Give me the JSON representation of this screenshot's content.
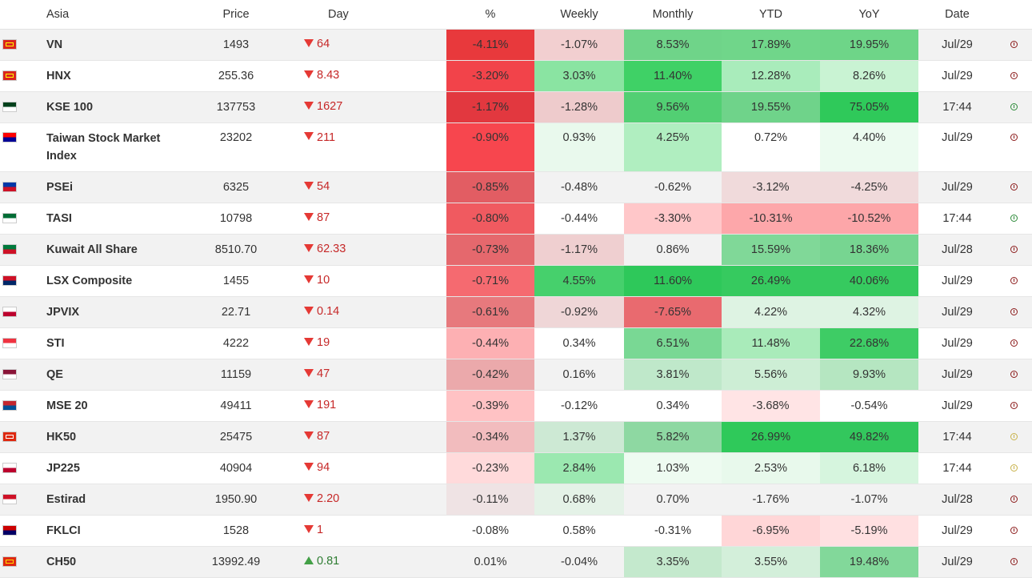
{
  "header": {
    "region": "Asia",
    "price": "Price",
    "day": "Day",
    "pct": "%",
    "weekly": "Weekly",
    "monthly": "Monthly",
    "ytd": "YTD",
    "yoy": "YoY",
    "date": "Date"
  },
  "rows": [
    {
      "name": "VN",
      "price": "1493",
      "day": "64",
      "dir": "down",
      "pct": "-4.11%",
      "weekly": "-1.07%",
      "monthly": "8.53%",
      "ytd": "17.89%",
      "yoy": "19.95%",
      "date": "Jul/29",
      "clock": "red-clock-icon",
      "flag_colors": [
        "#da251d",
        "#ffff00"
      ],
      "colors": {
        "pct": "#e8393c",
        "weekly": "#f2cfd0",
        "monthly": "#6fd489",
        "ytd": "#70d68a",
        "yoy": "#6ed588"
      }
    },
    {
      "name": "HNX",
      "price": "255.36",
      "day": "8.43",
      "dir": "down",
      "pct": "-3.20%",
      "weekly": "3.03%",
      "monthly": "11.40%",
      "ytd": "12.28%",
      "yoy": "8.26%",
      "date": "Jul/29",
      "clock": "red-clock-icon",
      "flag_colors": [
        "#da251d",
        "#ffff00"
      ],
      "colors": {
        "pct": "#f2434a",
        "weekly": "#8ae4a2",
        "monthly": "#3fd166",
        "ytd": "#a9ecbb",
        "yoy": "#c9f3d3"
      }
    },
    {
      "name": "KSE 100",
      "price": "137753",
      "day": "1627",
      "dir": "down",
      "pct": "-1.17%",
      "weekly": "-1.28%",
      "monthly": "9.56%",
      "ytd": "19.55%",
      "yoy": "75.05%",
      "date": "17:44",
      "clock": "green-clock-icon",
      "flag_colors": [
        "#01411c",
        "#ffffff"
      ],
      "colors": {
        "pct": "#e2383f",
        "weekly": "#eecbcc",
        "monthly": "#52cf73",
        "ytd": "#6fd38a",
        "yoy": "#2fc95a"
      }
    },
    {
      "name": "Taiwan Stock Market Index",
      "price": "23202",
      "day": "211",
      "dir": "down",
      "pct": "-0.90%",
      "weekly": "0.93%",
      "monthly": "4.25%",
      "ytd": "0.72%",
      "yoy": "4.40%",
      "date": "Jul/29",
      "clock": "red-clock-icon",
      "tall": true,
      "flag_colors": [
        "#fe0000",
        "#000095"
      ],
      "colors": {
        "pct": "#f7464e",
        "weekly": "#e9f9ed",
        "monthly": "#b0eec0",
        "ytd": "#ffffff",
        "yoy": "#ecfbf0"
      }
    },
    {
      "name": "PSEi",
      "price": "6325",
      "day": "54",
      "dir": "down",
      "pct": "-0.85%",
      "weekly": "-0.48%",
      "monthly": "-0.62%",
      "ytd": "-3.12%",
      "yoy": "-4.25%",
      "date": "Jul/29",
      "clock": "red-clock-icon",
      "flag_colors": [
        "#0038a8",
        "#ce1126"
      ],
      "colors": {
        "pct": "#e25d63",
        "weekly": "#f2f2f2",
        "monthly": "#f2f2f2",
        "ytd": "#f0dadb",
        "yoy": "#f0dadb"
      }
    },
    {
      "name": "TASI",
      "price": "10798",
      "day": "87",
      "dir": "down",
      "pct": "-0.80%",
      "weekly": "-0.44%",
      "monthly": "-3.30%",
      "ytd": "-10.31%",
      "yoy": "-10.52%",
      "date": "17:44",
      "clock": "green-clock-icon",
      "flag_colors": [
        "#006c35",
        "#ffffff"
      ],
      "colors": {
        "pct": "#f05a60",
        "weekly": "#ffffff",
        "monthly": "#ffc7c9",
        "ytd": "#fda7aa",
        "yoy": "#fda6a9"
      }
    },
    {
      "name": "Kuwait All Share",
      "price": "8510.70",
      "day": "62.33",
      "dir": "down",
      "pct": "-0.73%",
      "weekly": "-1.17%",
      "monthly": "0.86%",
      "ytd": "15.59%",
      "yoy": "18.36%",
      "date": "Jul/28",
      "clock": "red-clock-icon",
      "flag_colors": [
        "#007a3d",
        "#ce1126"
      ],
      "colors": {
        "pct": "#e5686d",
        "weekly": "#efcfd0",
        "monthly": "#f2f2f2",
        "ytd": "#80d898",
        "yoy": "#77d591"
      }
    },
    {
      "name": "LSX Composite",
      "price": "1455",
      "day": "10",
      "dir": "down",
      "pct": "-0.71%",
      "weekly": "4.55%",
      "monthly": "11.60%",
      "ytd": "26.49%",
      "yoy": "40.06%",
      "date": "Jul/29",
      "clock": "red-clock-icon",
      "flag_colors": [
        "#ce1126",
        "#002868"
      ],
      "colors": {
        "pct": "#f56a70",
        "weekly": "#46d06c",
        "monthly": "#2ec85a",
        "ytd": "#36ca5f",
        "yoy": "#36ca5f"
      }
    },
    {
      "name": "JPVIX",
      "price": "22.71",
      "day": "0.14",
      "dir": "down",
      "pct": "-0.61%",
      "weekly": "-0.92%",
      "monthly": "-7.65%",
      "ytd": "4.22%",
      "yoy": "4.32%",
      "date": "Jul/29",
      "clock": "red-clock-icon",
      "flag_colors": [
        "#ffffff",
        "#bc002d"
      ],
      "colors": {
        "pct": "#e7797d",
        "weekly": "#efd6d7",
        "monthly": "#e96a6f",
        "ytd": "#def3e3",
        "yoy": "#def3e3"
      }
    },
    {
      "name": "STI",
      "price": "4222",
      "day": "19",
      "dir": "down",
      "pct": "-0.44%",
      "weekly": "0.34%",
      "monthly": "6.51%",
      "ytd": "11.48%",
      "yoy": "22.68%",
      "date": "Jul/29",
      "clock": "red-clock-icon",
      "flag_colors": [
        "#ef3340",
        "#ffffff"
      ],
      "colors": {
        "pct": "#fdb0b3",
        "weekly": "#ffffff",
        "monthly": "#79d894",
        "ytd": "#a9ebba",
        "yoy": "#3ecc65"
      }
    },
    {
      "name": "QE",
      "price": "11159",
      "day": "47",
      "dir": "down",
      "pct": "-0.42%",
      "weekly": "0.16%",
      "monthly": "3.81%",
      "ytd": "5.56%",
      "yoy": "9.93%",
      "date": "Jul/29",
      "clock": "red-clock-icon",
      "flag_colors": [
        "#8a1538",
        "#ffffff"
      ],
      "colors": {
        "pct": "#eba9ab",
        "weekly": "#f2f2f2",
        "monthly": "#bfe8ca",
        "ytd": "#cdeed5",
        "yoy": "#b5e6c1"
      }
    },
    {
      "name": "MSE 20",
      "price": "49411",
      "day": "191",
      "dir": "down",
      "pct": "-0.39%",
      "weekly": "-0.12%",
      "monthly": "0.34%",
      "ytd": "-3.68%",
      "yoy": "-0.54%",
      "date": "Jul/29",
      "clock": "red-clock-icon",
      "flag_colors": [
        "#c4272f",
        "#015197"
      ],
      "colors": {
        "pct": "#ffc2c4",
        "weekly": "#ffffff",
        "monthly": "#ffffff",
        "ytd": "#ffe4e5",
        "yoy": "#ffffff"
      }
    },
    {
      "name": "HK50",
      "price": "25475",
      "day": "87",
      "dir": "down",
      "pct": "-0.34%",
      "weekly": "1.37%",
      "monthly": "5.82%",
      "ytd": "26.99%",
      "yoy": "49.82%",
      "date": "17:44",
      "clock": "yellow-clock-icon",
      "flag_colors": [
        "#de2910",
        "#ffffff"
      ],
      "colors": {
        "pct": "#f2bcbe",
        "weekly": "#cde9d4",
        "monthly": "#8ed8a2",
        "ytd": "#2fc95a",
        "yoy": "#33c75d"
      }
    },
    {
      "name": "JP225",
      "price": "40904",
      "day": "94",
      "dir": "down",
      "pct": "-0.23%",
      "weekly": "2.84%",
      "monthly": "1.03%",
      "ytd": "2.53%",
      "yoy": "6.18%",
      "date": "17:44",
      "clock": "yellow-clock-icon",
      "flag_colors": [
        "#ffffff",
        "#bc002d"
      ],
      "colors": {
        "pct": "#ffdadb",
        "weekly": "#9be8b0",
        "monthly": "#eefbf1",
        "ytd": "#e8f9ec",
        "yoy": "#d6f5de"
      }
    },
    {
      "name": "Estirad",
      "price": "1950.90",
      "day": "2.20",
      "dir": "down",
      "pct": "-0.11%",
      "weekly": "0.68%",
      "monthly": "0.70%",
      "ytd": "-1.76%",
      "yoy": "-1.07%",
      "date": "Jul/28",
      "clock": "red-clock-icon",
      "flag_colors": [
        "#ce1126",
        "#ffffff"
      ],
      "colors": {
        "pct": "#efe3e4",
        "weekly": "#e4f2e7",
        "monthly": "#f2f2f2",
        "ytd": "#f2f2f2",
        "yoy": "#f2f2f2"
      }
    },
    {
      "name": "FKLCI",
      "price": "1528",
      "day": "1",
      "dir": "down",
      "pct": "-0.08%",
      "weekly": "0.58%",
      "monthly": "-0.31%",
      "ytd": "-6.95%",
      "yoy": "-5.19%",
      "date": "Jul/29",
      "clock": "red-clock-icon",
      "flag_colors": [
        "#cc0001",
        "#010066"
      ],
      "colors": {
        "pct": "#ffffff",
        "weekly": "#ffffff",
        "monthly": "#ffffff",
        "ytd": "#ffd6d7",
        "yoy": "#ffe0e1"
      }
    },
    {
      "name": "CH50",
      "price": "13992.49",
      "day": "0.81",
      "dir": "up",
      "pct": "0.01%",
      "weekly": "-0.04%",
      "monthly": "3.35%",
      "ytd": "3.55%",
      "yoy": "19.48%",
      "date": "Jul/29",
      "clock": "red-clock-icon",
      "flag_colors": [
        "#de2910",
        "#ffde00"
      ],
      "colors": {
        "pct": "#f2f2f2",
        "weekly": "#f2f2f2",
        "monthly": "#c4e9cd",
        "ytd": "#d3efda",
        "yoy": "#82d89a"
      }
    }
  ]
}
